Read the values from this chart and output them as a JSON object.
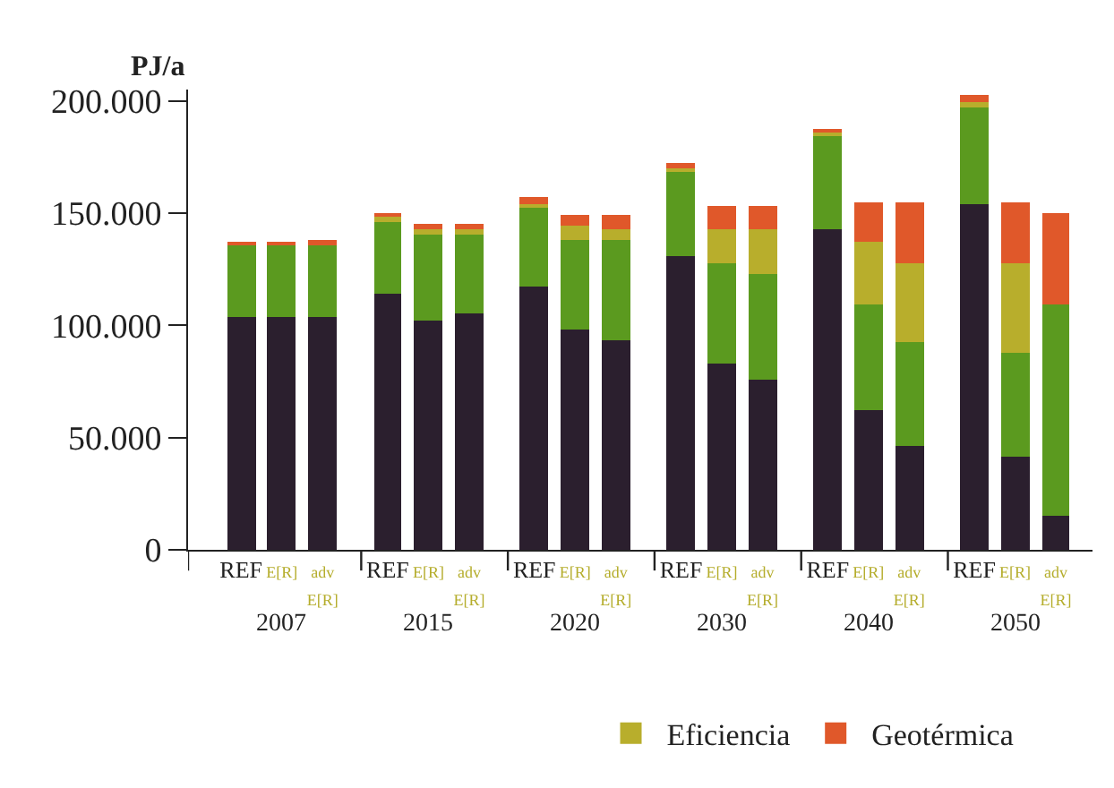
{
  "chart_data": {
    "type": "bar",
    "stacked": true,
    "ylabel": "PJ/a",
    "categories": [
      "REF",
      "E[R]",
      "adv\nE[R]",
      "REF",
      "E[R]",
      "adv\nE[R]",
      "REF",
      "E[R]",
      "adv\nE[R]",
      "REF",
      "E[R]",
      "adv\nE[R]",
      "REF",
      "E[R]",
      "adv\nE[R]",
      "REF",
      "E[R]",
      "adv\nE[R]"
    ],
    "series": [
      {
        "color": "#2b1f2e",
        "values": [
          104000,
          104000,
          104000,
          114000,
          102000,
          105000,
          117000,
          98000,
          93500,
          131000,
          83000,
          76000,
          142500,
          62500,
          46000,
          154000,
          41500,
          15000
        ]
      },
      {
        "color": "#5b9a1f",
        "values": [
          31500,
          31500,
          32000,
          32000,
          38000,
          35500,
          36000,
          40000,
          44500,
          38000,
          44500,
          46500,
          42000,
          46500,
          46500,
          43000,
          46000,
          94000
        ]
      },
      {
        "name": "Eficiencia",
        "color": "#b8ae2c",
        "values": [
          0,
          0,
          0,
          2500,
          2500,
          2500,
          1000,
          6500,
          5000,
          1500,
          15500,
          20500,
          1500,
          28500,
          35500,
          2500,
          40500,
          0
        ]
      },
      {
        "name": "Geotérmica",
        "color": "#e0582a",
        "values": [
          2000,
          2000,
          2000,
          1500,
          2500,
          2000,
          3000,
          5000,
          6500,
          1500,
          10500,
          10500,
          1000,
          17500,
          26500,
          3500,
          26500,
          41000
        ]
      }
    ],
    "ylim": [
      0,
      205000
    ],
    "yticks": [
      {
        "value": 0,
        "label": "0"
      },
      {
        "value": 50000,
        "label": "50.000"
      },
      {
        "value": 100000,
        "label": "100.000"
      },
      {
        "value": 150000,
        "label": "150.000"
      },
      {
        "value": 200000,
        "label": "200.000"
      }
    ],
    "annotations": [
      "2007",
      "2015",
      "2020",
      "2030",
      "2040",
      "2050"
    ],
    "legend": "bottom"
  }
}
